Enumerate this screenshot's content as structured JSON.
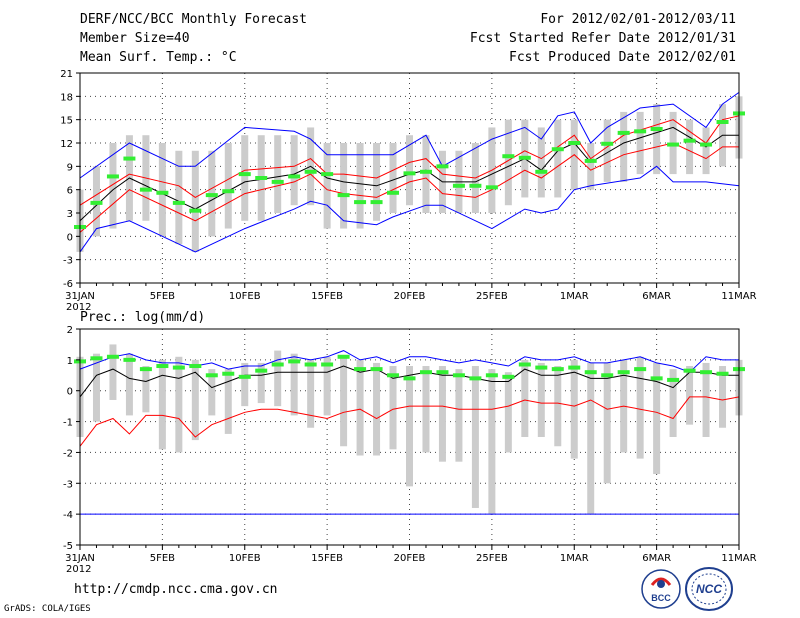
{
  "header": {
    "title": "DERF/NCC/BCC Monthly Forecast",
    "member_size": "Member Size=40",
    "variable": "Mean Surf. Temp.: °C",
    "period": "For 2012/02/01-2012/03/11",
    "started": "Fcst Started Refer Date 2012/01/31",
    "produced": "Fcst Produced Date 2012/02/01"
  },
  "footer": {
    "url": "http://cmdp.ncc.cma.gov.cn",
    "credit": "GrADS: COLA/IGES",
    "logo_bcc": "BCC",
    "logo_ncc": "NCC"
  },
  "chart_data": [
    {
      "type": "line",
      "title": "Mean Surf. Temp.: °C",
      "x_tick_labels": [
        "31JAN",
        "5FEB",
        "10FEB",
        "15FEB",
        "20FEB",
        "25FEB",
        "1MAR",
        "6MAR",
        "11MAR"
      ],
      "x_tick_day": [
        0,
        5,
        10,
        15,
        20,
        25,
        30,
        35,
        40
      ],
      "year_label": "2012",
      "ylim": [
        -6,
        21
      ],
      "yticks": [
        -6,
        -3,
        0,
        3,
        6,
        9,
        12,
        15,
        18,
        21
      ],
      "ensemble_box_days": [
        0,
        1,
        2,
        3,
        4,
        5,
        6,
        7,
        8,
        9,
        10,
        11,
        12,
        13,
        14,
        15,
        16,
        17,
        18,
        19,
        20,
        21,
        22,
        23,
        24,
        25,
        26,
        27,
        28,
        29,
        30,
        31,
        32,
        33,
        34,
        35,
        36,
        37,
        38,
        39,
        40
      ],
      "ensemble_box_low": [
        -2,
        0,
        1,
        2,
        2,
        0,
        -1,
        -2,
        0,
        1,
        2,
        2,
        3,
        4,
        4,
        1,
        1,
        1,
        2,
        3,
        4,
        3,
        3,
        3,
        3,
        3,
        4,
        5,
        5,
        5,
        6,
        6,
        7,
        7,
        8,
        8,
        8,
        8,
        8,
        9,
        10
      ],
      "ensemble_box_high": [
        6,
        9,
        12,
        13,
        13,
        12,
        11,
        11,
        11,
        12,
        13,
        13,
        13,
        13,
        14,
        12,
        12,
        12,
        12,
        12,
        13,
        13,
        11,
        11,
        12,
        14,
        15,
        15,
        14,
        15,
        15,
        12,
        15,
        16,
        16,
        17,
        16,
        15,
        14,
        17,
        18
      ],
      "series": [
        {
          "name": "ensemble max",
          "color": "#0000ff",
          "days": [
            0,
            3,
            6,
            7,
            10,
            13,
            14,
            15,
            16,
            19,
            21,
            22,
            25,
            27,
            28,
            29,
            30,
            31,
            32,
            34,
            36,
            38,
            39,
            40
          ],
          "values": [
            7.5,
            12,
            9,
            9,
            14,
            13.5,
            12.5,
            10.5,
            10.5,
            10.5,
            13,
            9,
            12.5,
            14,
            12.5,
            15.5,
            16,
            12,
            14,
            16.5,
            17,
            14,
            17,
            18.5
          ]
        },
        {
          "name": "ensemble min",
          "color": "#0000ff",
          "days": [
            0,
            1,
            3,
            6,
            7,
            10,
            13,
            14,
            15,
            16,
            18,
            19,
            21,
            22,
            25,
            27,
            28,
            29,
            30,
            31,
            34,
            35,
            36,
            38,
            40
          ],
          "values": [
            -2,
            1,
            2,
            -1,
            -2,
            1,
            3.5,
            4.5,
            4,
            2,
            1.5,
            2.5,
            4,
            4,
            1,
            3.5,
            3,
            3.5,
            6,
            6.5,
            7.5,
            9,
            7,
            7,
            6.5
          ]
        },
        {
          "name": "upper spread",
          "color": "#ff0000",
          "days": [
            0,
            3,
            6,
            7,
            10,
            13,
            14,
            15,
            16,
            18,
            20,
            21,
            22,
            24,
            25,
            27,
            28,
            29,
            30,
            31,
            33,
            36,
            38,
            39,
            40
          ],
          "values": [
            4,
            8,
            6.5,
            5,
            8.5,
            9,
            10,
            8,
            8,
            7.5,
            9.5,
            10,
            8,
            7.5,
            8.5,
            11,
            10,
            11.5,
            13,
            10,
            13,
            15,
            12,
            15,
            15.5
          ]
        },
        {
          "name": "ensemble mean",
          "color": "#000000",
          "days": [
            0,
            2,
            3,
            6,
            7,
            10,
            13,
            14,
            15,
            16,
            18,
            20,
            21,
            22,
            24,
            25,
            27,
            28,
            29,
            30,
            31,
            33,
            36,
            38,
            39,
            40
          ],
          "values": [
            2,
            6,
            7.5,
            4.5,
            3.5,
            7,
            8,
            9,
            7.5,
            7,
            6.5,
            8,
            8.5,
            7,
            7,
            8,
            10,
            8.5,
            11,
            12,
            9.5,
            12,
            14,
            11.5,
            13,
            13
          ]
        },
        {
          "name": "lower spread",
          "color": "#ff0000",
          "days": [
            0,
            3,
            6,
            7,
            10,
            13,
            14,
            15,
            16,
            18,
            20,
            21,
            22,
            24,
            25,
            27,
            28,
            29,
            30,
            31,
            33,
            36,
            38,
            39,
            40
          ],
          "values": [
            0.5,
            6,
            3,
            2,
            5.5,
            7,
            8,
            6,
            5.5,
            5,
            7,
            7.5,
            5.5,
            5,
            6,
            8.5,
            7.5,
            9,
            10.5,
            8.5,
            10.5,
            12,
            10,
            11.5,
            11.5
          ]
        }
      ],
      "ensemble_median": {
        "color": "#33ee33",
        "days": [
          0,
          1,
          2,
          3,
          4,
          5,
          6,
          7,
          8,
          9,
          10,
          11,
          12,
          13,
          14,
          15,
          16,
          17,
          18,
          19,
          20,
          21,
          22,
          23,
          24,
          25,
          26,
          27,
          28,
          29,
          30,
          31,
          32,
          33,
          34,
          35,
          36,
          37,
          38,
          39,
          40
        ],
        "values": [
          1.2,
          4.3,
          7.7,
          10,
          6,
          5.6,
          4.3,
          3.3,
          5.3,
          5.8,
          8,
          7.5,
          7,
          7.7,
          8.3,
          8,
          5.3,
          4.4,
          4.4,
          5.6,
          8.1,
          8.3,
          9,
          6.5,
          6.5,
          6.3,
          10.3,
          10.1,
          8.3,
          11.2,
          12,
          9.7,
          11.9,
          13.3,
          13.5,
          13.8,
          11.8,
          12.3,
          11.8,
          14.7,
          15.8
        ]
      }
    },
    {
      "type": "line",
      "title": "Prec.: log(mm/d)",
      "x_tick_labels": [
        "31JAN",
        "5FEB",
        "10FEB",
        "15FEB",
        "20FEB",
        "25FEB",
        "1MAR",
        "6MAR",
        "11MAR"
      ],
      "x_tick_day": [
        0,
        5,
        10,
        15,
        20,
        25,
        30,
        35,
        40
      ],
      "year_label": "2012",
      "ylim": [
        -5,
        2
      ],
      "yticks": [
        -5,
        -4,
        -3,
        -2,
        -1,
        0,
        1,
        2
      ],
      "ensemble_box_days": [
        0,
        1,
        2,
        3,
        4,
        5,
        6,
        7,
        8,
        9,
        10,
        11,
        12,
        13,
        14,
        15,
        16,
        17,
        18,
        19,
        20,
        21,
        22,
        23,
        24,
        25,
        26,
        27,
        28,
        29,
        30,
        31,
        32,
        33,
        34,
        35,
        36,
        37,
        38,
        39,
        40
      ],
      "ensemble_box_low": [
        -1.5,
        -1,
        -0.3,
        -0.8,
        -0.7,
        -1.9,
        -2,
        -1.6,
        -0.8,
        -1.4,
        -0.5,
        -0.4,
        -0.5,
        -0.8,
        -1.2,
        -0.8,
        -1.8,
        -2.1,
        -2.1,
        -1.9,
        -3.1,
        -2,
        -2.3,
        -2.3,
        -3.8,
        -4,
        -2,
        -1.5,
        -1.5,
        -1.8,
        -2.2,
        -4,
        -3,
        -2,
        -2.2,
        -2.7,
        -1.5,
        -1.1,
        -1.5,
        -1.2,
        -0.8
      ],
      "ensemble_box_high": [
        1.1,
        1.2,
        1.5,
        1.2,
        0.8,
        1,
        1.1,
        1,
        0.7,
        0.7,
        0.9,
        0.9,
        1.3,
        1.2,
        1,
        1.1,
        1.1,
        1,
        0.9,
        0.8,
        0.8,
        0.8,
        0.8,
        0.7,
        0.8,
        0.7,
        0.6,
        1,
        0.9,
        0.8,
        1,
        0.9,
        0.9,
        1,
        1.1,
        0.9,
        0.7,
        0.8,
        0.9,
        0.8,
        1
      ],
      "series": [
        {
          "name": "ensemble max",
          "color": "#0000ff",
          "days": [
            0,
            2,
            3,
            4,
            5,
            6,
            7,
            8,
            9,
            10,
            11,
            12,
            13,
            14,
            15,
            16,
            17,
            18,
            19,
            20,
            21,
            22,
            23,
            24,
            25,
            26,
            27,
            28,
            29,
            30,
            31,
            32,
            33,
            34,
            35,
            36,
            37,
            38,
            39,
            40
          ],
          "values": [
            0.7,
            1.1,
            1.2,
            1,
            0.9,
            0.9,
            0.8,
            0.9,
            0.7,
            0.8,
            0.8,
            1,
            1.1,
            1,
            1.1,
            1.3,
            1,
            1.1,
            0.9,
            1.1,
            1.1,
            1,
            0.9,
            1,
            0.9,
            0.8,
            1.1,
            1,
            1,
            1.1,
            0.9,
            0.9,
            1,
            1.1,
            0.9,
            0.8,
            0.6,
            1.1,
            1,
            1
          ]
        },
        {
          "name": "ensemble mean",
          "color": "#000000",
          "days": [
            0,
            1,
            2,
            3,
            4,
            5,
            6,
            7,
            8,
            9,
            10,
            11,
            12,
            13,
            14,
            15,
            16,
            17,
            18,
            19,
            20,
            21,
            22,
            23,
            24,
            25,
            26,
            27,
            28,
            29,
            30,
            31,
            32,
            33,
            34,
            35,
            36,
            37,
            38,
            39,
            40
          ],
          "values": [
            -0.2,
            0.5,
            0.7,
            0.4,
            0.3,
            0.5,
            0.4,
            0.6,
            0.1,
            0.3,
            0.5,
            0.5,
            0.6,
            0.6,
            0.6,
            0.6,
            0.8,
            0.6,
            0.7,
            0.4,
            0.5,
            0.6,
            0.5,
            0.5,
            0.4,
            0.3,
            0.3,
            0.7,
            0.5,
            0.5,
            0.6,
            0.4,
            0.4,
            0.5,
            0.4,
            0.3,
            0.1,
            0.6,
            0.6,
            0.5,
            0.5
          ]
        },
        {
          "name": "ensemble min",
          "color": "#ff0000",
          "days": [
            0,
            1,
            2,
            3,
            4,
            5,
            6,
            7,
            8,
            9,
            10,
            11,
            12,
            13,
            14,
            15,
            16,
            17,
            18,
            19,
            20,
            21,
            22,
            23,
            24,
            25,
            26,
            27,
            28,
            29,
            30,
            31,
            32,
            33,
            34,
            35,
            36,
            37,
            38,
            39,
            40
          ],
          "values": [
            -1.8,
            -1.1,
            -0.9,
            -1.4,
            -0.8,
            -0.8,
            -0.9,
            -1.5,
            -1.1,
            -0.9,
            -0.7,
            -0.6,
            -0.6,
            -0.7,
            -0.8,
            -0.9,
            -0.7,
            -0.6,
            -0.9,
            -0.6,
            -0.5,
            -0.5,
            -0.5,
            -0.6,
            -0.6,
            -0.6,
            -0.5,
            -0.3,
            -0.4,
            -0.4,
            -0.5,
            -0.3,
            -0.6,
            -0.5,
            -0.6,
            -0.7,
            -0.9,
            -0.2,
            -0.2,
            -0.3,
            -0.2
          ]
        },
        {
          "name": "ensemble bottom",
          "color": "#0000ff",
          "days": [
            0,
            40
          ],
          "values": [
            -4,
            -4
          ]
        }
      ],
      "ensemble_median": {
        "color": "#33ee33",
        "days": [
          0,
          1,
          2,
          3,
          4,
          5,
          6,
          7,
          8,
          9,
          10,
          11,
          12,
          13,
          14,
          15,
          16,
          17,
          18,
          19,
          20,
          21,
          22,
          23,
          24,
          25,
          26,
          27,
          28,
          29,
          30,
          31,
          32,
          33,
          34,
          35,
          36,
          37,
          38,
          39,
          40
        ],
        "values": [
          0.95,
          1.05,
          1.1,
          1,
          0.7,
          0.8,
          0.75,
          0.8,
          0.5,
          0.55,
          0.45,
          0.65,
          0.85,
          0.95,
          0.85,
          0.85,
          1.1,
          0.7,
          0.7,
          0.5,
          0.4,
          0.6,
          0.6,
          0.5,
          0.4,
          0.5,
          0.45,
          0.85,
          0.75,
          0.7,
          0.75,
          0.6,
          0.5,
          0.6,
          0.7,
          0.4,
          0.35,
          0.65,
          0.6,
          0.55,
          0.7
        ]
      }
    }
  ]
}
